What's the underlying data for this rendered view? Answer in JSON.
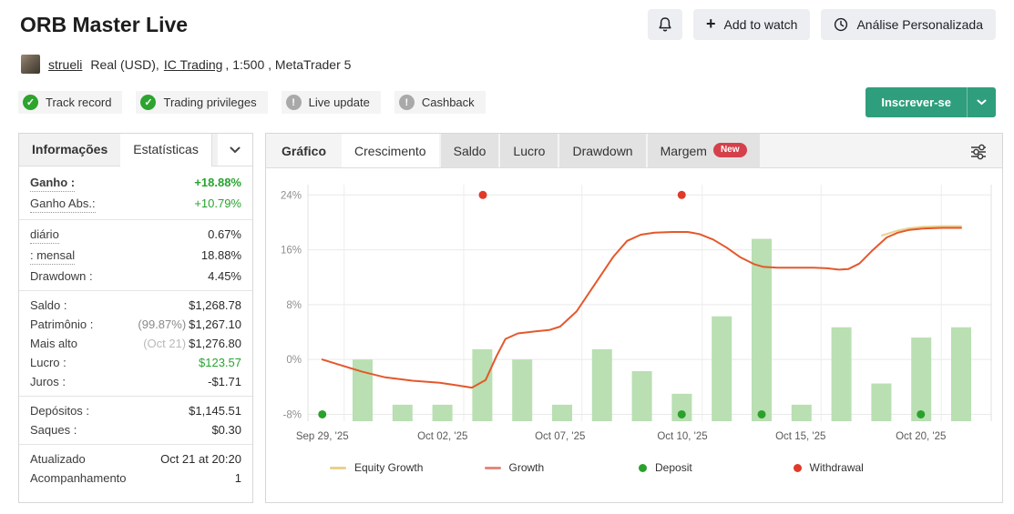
{
  "header": {
    "title": "ORB Master Live",
    "add_to_watch_label": "Add to watch",
    "plus_glyph": "+",
    "analysis_label": "Análise Personalizada"
  },
  "user": {
    "name": "strueli",
    "account_prefix": "Real (USD),",
    "broker": "IC Trading",
    "account_suffix": ", 1:500 , MetaTrader 5"
  },
  "icon_glyphs": {
    "ok": "✓",
    "info": "!"
  },
  "badges": [
    {
      "label": "Track record",
      "status": "ok"
    },
    {
      "label": "Trading privileges",
      "status": "ok"
    },
    {
      "label": "Live update",
      "status": "info"
    },
    {
      "label": "Cashback",
      "status": "info"
    }
  ],
  "subscribe": {
    "label": "Inscrever-se"
  },
  "left_panel": {
    "tabs": [
      {
        "label": "Informações",
        "active": false,
        "bold": true
      },
      {
        "label": "Estatísticas",
        "active": true,
        "bold": false
      }
    ],
    "groups": [
      [
        {
          "label": "Ganho :",
          "value": "+18.88%",
          "label_class": "bold dotted",
          "value_class": "green bold"
        },
        {
          "label": "Ganho Abs.:",
          "value": "+10.79%",
          "label_class": "dotted",
          "value_class": "green"
        }
      ],
      [
        {
          "label": "diário",
          "value": "0.67%",
          "label_class": "dotted"
        },
        {
          "label": ": mensal",
          "value": "18.88%",
          "label_class": "dotted"
        },
        {
          "label": "Drawdown :",
          "value": "4.45%"
        }
      ],
      [
        {
          "label": "Saldo :",
          "value": "$1,268.78"
        },
        {
          "label": "Patrimônio :",
          "value": "$1,267.10",
          "value_prefix": "(99.87%)",
          "prefix_class": "gray"
        },
        {
          "label": "Mais alto",
          "value": "$1,276.80",
          "value_prefix": "(Oct 21)",
          "prefix_class": "lightgray"
        },
        {
          "label": "Lucro :",
          "value": "$123.57",
          "value_class": "green"
        },
        {
          "label": "Juros :",
          "value": "-$1.71"
        }
      ],
      [
        {
          "label": "Depósitos :",
          "value": "$1,145.51"
        },
        {
          "label": "Saques :",
          "value": "$0.30"
        }
      ],
      [
        {
          "label": "Atualizado",
          "value": "Oct 21 at 20:20"
        },
        {
          "label": "Acompanhamento",
          "value": "1"
        }
      ]
    ]
  },
  "chart_panel": {
    "section_label": "Gráfico",
    "tabs": [
      {
        "label": "Crescimento",
        "active": true
      },
      {
        "label": "Saldo",
        "active": false
      },
      {
        "label": "Lucro",
        "active": false
      },
      {
        "label": "Drawdown",
        "active": false
      },
      {
        "label": "Margem",
        "active": false,
        "badge": "New"
      }
    ]
  },
  "chart_data": {
    "type": "mixed bar+line+scatter (account growth)",
    "title": "Crescimento",
    "ylim": [
      -9,
      25.5
    ],
    "yticks": [
      {
        "v": 24,
        "label": "24%"
      },
      {
        "v": 16,
        "label": "16%"
      },
      {
        "v": 8,
        "label": "8%"
      },
      {
        "v": 0,
        "label": "0%"
      },
      {
        "v": -8,
        "label": "-8%"
      }
    ],
    "x_gridlines_f": [
      0.053,
      0.228,
      0.401,
      0.577,
      0.751,
      0.927
    ],
    "x_labels": [
      {
        "text": "Sep 29, '25",
        "f": 0.021
      },
      {
        "text": "Oct 02, '25",
        "f": 0.197
      },
      {
        "text": "Oct 07, '25",
        "f": 0.369
      },
      {
        "text": "Oct 10, '25",
        "f": 0.548
      },
      {
        "text": "Oct 15, '25",
        "f": 0.721
      },
      {
        "text": "Oct 20, '25",
        "f": 0.897
      }
    ],
    "bars": {
      "name": "daily-growth-bars",
      "color": "#b9dfb2",
      "first_f": 0.08,
      "last_f": 0.956,
      "values": [
        0,
        -6.6,
        -6.6,
        1.5,
        0,
        -6.6,
        1.5,
        -1.7,
        -5,
        6.3,
        17.6,
        -6.6,
        4.7,
        -3.5,
        3.2,
        4.7
      ]
    },
    "equity_line": {
      "name": "Equity Growth",
      "color": "#e8d18c",
      "points": [
        [
          0.84,
          18.1
        ],
        [
          0.863,
          18.8
        ],
        [
          0.88,
          19.15
        ],
        [
          0.9,
          19.35
        ],
        [
          0.927,
          19.45
        ],
        [
          0.956,
          19.45
        ]
      ]
    },
    "growth_line": {
      "name": "Growth",
      "color": "#e4582b",
      "points": [
        [
          0.021,
          0
        ],
        [
          0.047,
          -0.8
        ],
        [
          0.08,
          -1.8
        ],
        [
          0.113,
          -2.6
        ],
        [
          0.153,
          -3.1
        ],
        [
          0.193,
          -3.4
        ],
        [
          0.22,
          -3.8
        ],
        [
          0.24,
          -4.1
        ],
        [
          0.26,
          -3.0
        ],
        [
          0.276,
          0.5
        ],
        [
          0.289,
          3.0
        ],
        [
          0.307,
          3.8
        ],
        [
          0.333,
          4.1
        ],
        [
          0.353,
          4.3
        ],
        [
          0.369,
          4.8
        ],
        [
          0.393,
          7.0
        ],
        [
          0.42,
          11.0
        ],
        [
          0.447,
          15.0
        ],
        [
          0.467,
          17.3
        ],
        [
          0.487,
          18.2
        ],
        [
          0.507,
          18.5
        ],
        [
          0.533,
          18.6
        ],
        [
          0.556,
          18.6
        ],
        [
          0.573,
          18.3
        ],
        [
          0.593,
          17.5
        ],
        [
          0.613,
          16.3
        ],
        [
          0.633,
          14.9
        ],
        [
          0.653,
          13.9
        ],
        [
          0.667,
          13.5
        ],
        [
          0.687,
          13.4
        ],
        [
          0.713,
          13.4
        ],
        [
          0.74,
          13.4
        ],
        [
          0.76,
          13.3
        ],
        [
          0.777,
          13.1
        ],
        [
          0.791,
          13.2
        ],
        [
          0.807,
          14.0
        ],
        [
          0.827,
          16.0
        ],
        [
          0.847,
          17.8
        ],
        [
          0.863,
          18.5
        ],
        [
          0.88,
          18.9
        ],
        [
          0.9,
          19.1
        ],
        [
          0.927,
          19.2
        ],
        [
          0.956,
          19.2
        ]
      ]
    },
    "deposits": {
      "name": "Deposit",
      "color": "#2aa12c",
      "v": -8,
      "f": [
        0.021,
        0.547,
        0.664,
        0.897
      ]
    },
    "withdrawals": {
      "name": "Withdrawal",
      "color": "#e03a28",
      "v": 24,
      "f": [
        0.256,
        0.547
      ]
    },
    "legend": [
      {
        "label": "Equity Growth",
        "swatch": "line",
        "color": "#e8d18c"
      },
      {
        "label": "Growth",
        "swatch": "line",
        "color": "#e2897e"
      },
      {
        "label": "Deposit",
        "swatch": "dot",
        "color": "#2aa12c"
      },
      {
        "label": "Withdrawal",
        "swatch": "dot",
        "color": "#e03a28"
      }
    ],
    "grid": true,
    "legend_position": "bottom"
  }
}
